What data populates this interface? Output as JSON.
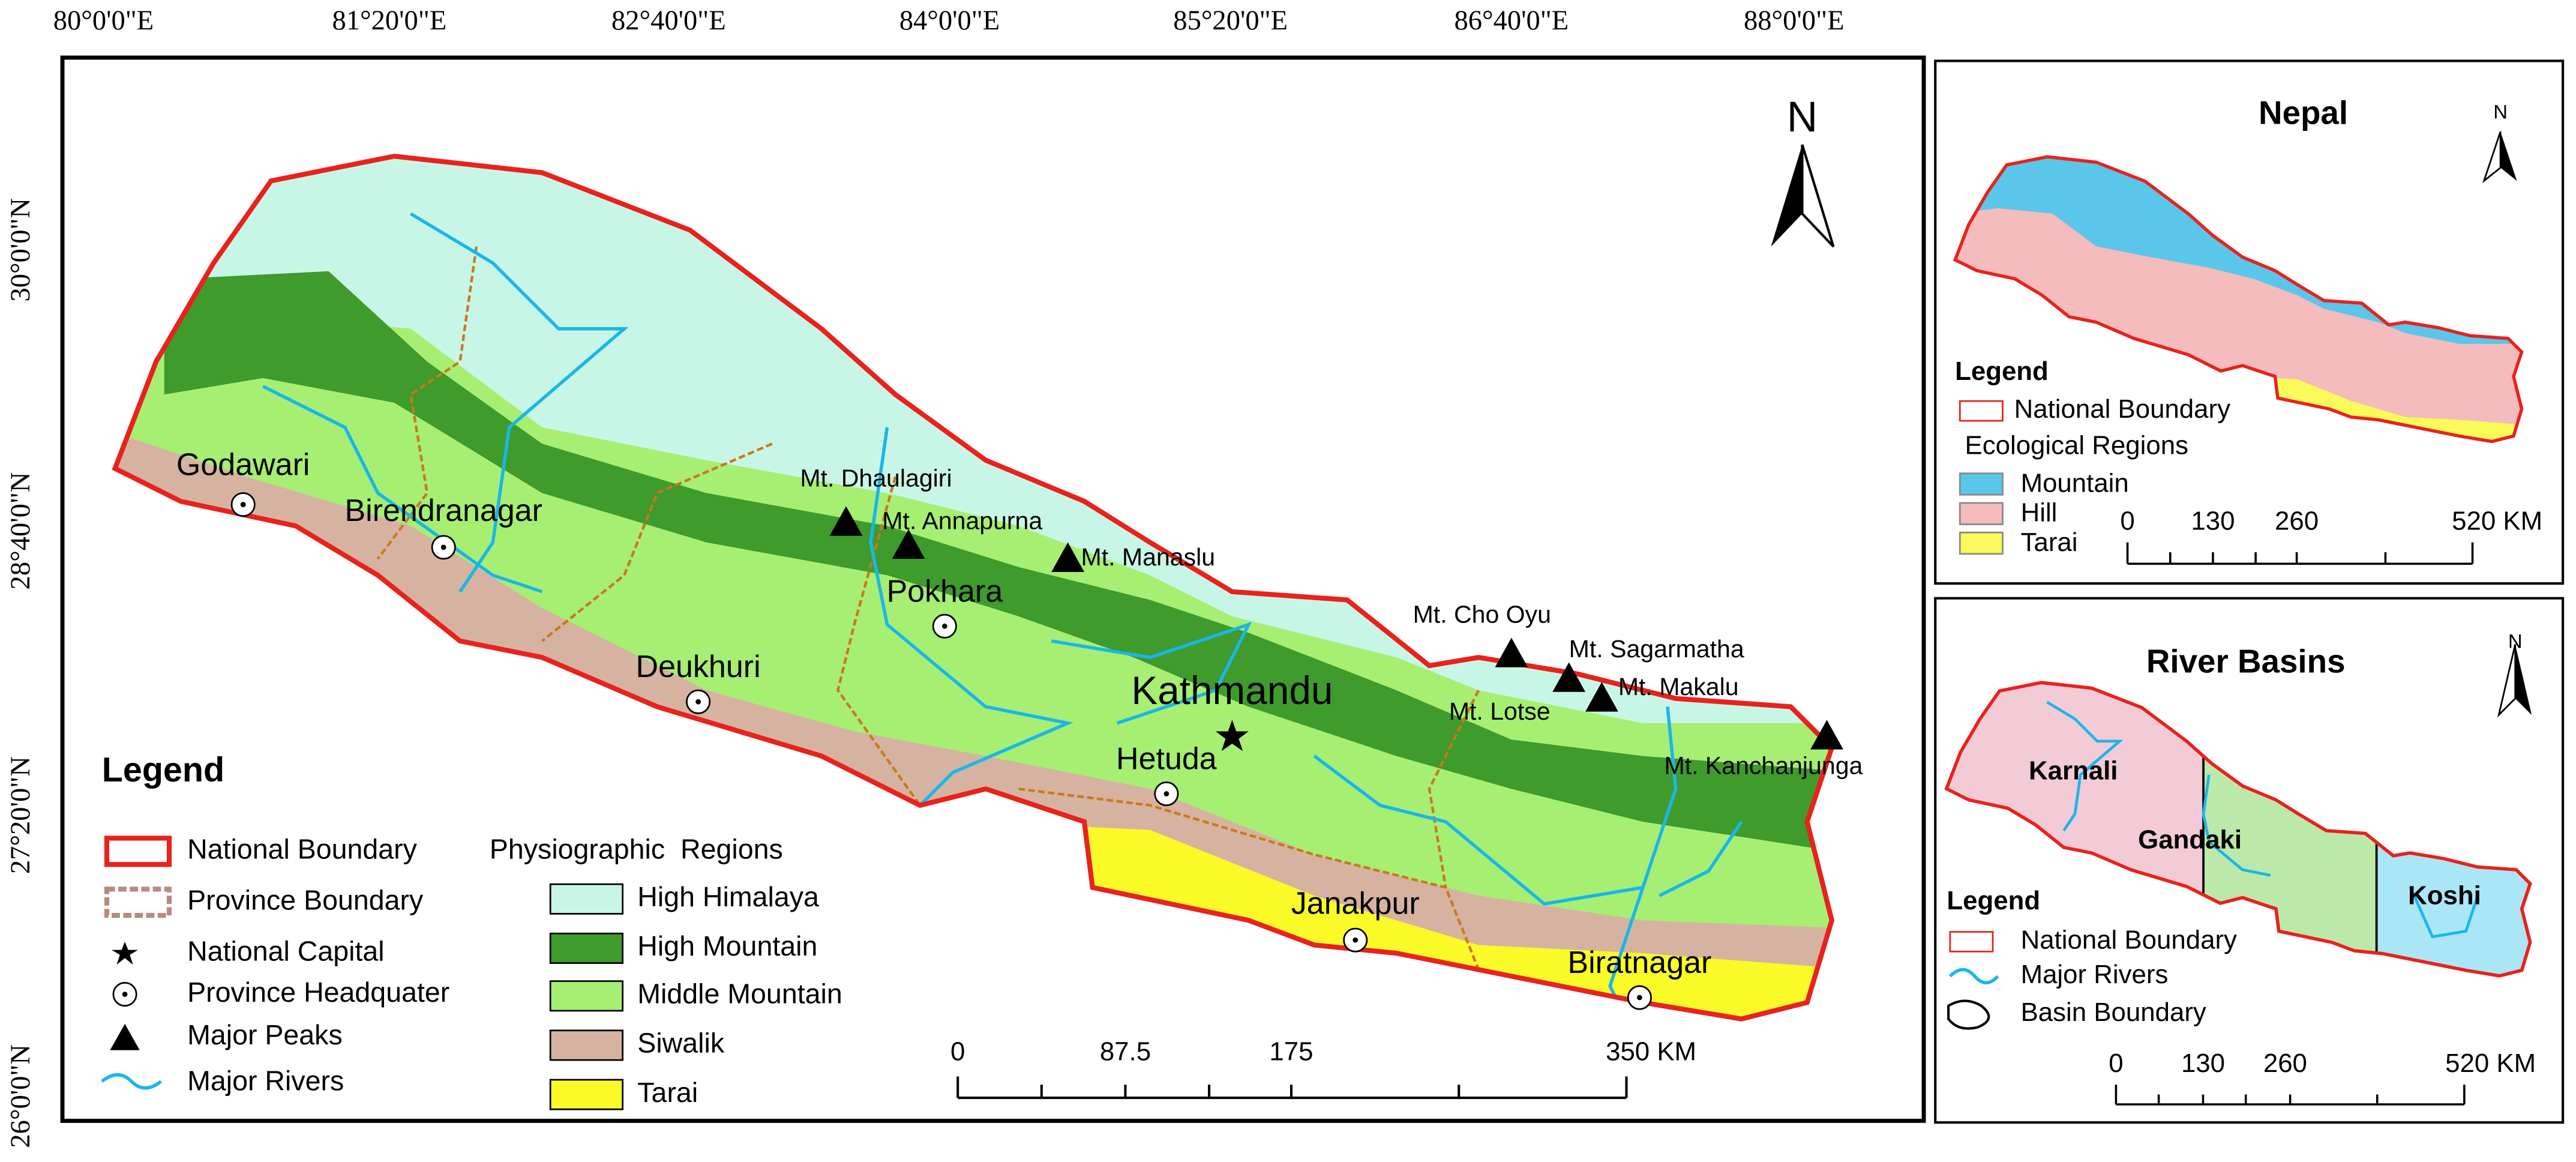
{
  "main_map": {
    "lon_labels": [
      "80°0'0\"E",
      "81°20'0\"E",
      "82°40'0\"E",
      "84°0'0\"E",
      "85°20'0\"E",
      "86°40'0\"E",
      "88°0'0\"E"
    ],
    "lat_labels": [
      "30°0'0\"N",
      "28°40'0\"N",
      "27°20'0\"N",
      "26°0'0\"N"
    ],
    "north": "N",
    "places": [
      "Godawari",
      "Birendranagar",
      "Deukhuri",
      "Pokhara",
      "Kathmandu",
      "Hetuda",
      "Janakpur",
      "Biratnagar"
    ],
    "peaks": [
      "Mt. Dhaulagiri",
      "Mt. Annapurna",
      "Mt. Manaslu",
      "Mt. Cho Oyu",
      "Mt. Sagarmatha",
      "Mt. Lotse",
      "Mt. Makalu",
      "Mt. Kanchanjunga"
    ],
    "legend": {
      "title": "Legend",
      "items": [
        "National Boundary",
        "Province Boundary",
        "National Capital",
        "Province Headquater",
        "Major Peaks",
        "Major Rivers"
      ],
      "regions_title": "Physiographic  Regions",
      "regions": [
        "High Himalaya",
        "High Mountain",
        "Middle Mountain",
        "Siwalik",
        "Tarai"
      ]
    },
    "scale": [
      "0",
      "87.5",
      "175",
      "350 KM"
    ]
  },
  "nepal_inset": {
    "title": "Nepal",
    "north": "N",
    "legend_title": "Legend",
    "boundary": "National Boundary",
    "regions_title": "Ecological Regions",
    "regions": [
      "Mountain",
      "Hill",
      "Tarai"
    ],
    "scale": [
      "0",
      "130",
      "260",
      "520 KM"
    ]
  },
  "basin_inset": {
    "title": "River Basins",
    "north": "N",
    "basins": [
      "Karnali",
      "Gandaki",
      "Koshi"
    ],
    "legend_title": "Legend",
    "items": [
      "National Boundary",
      "Major Rivers",
      "Basin Boundary"
    ],
    "scale": [
      "0",
      "130",
      "260",
      "520 KM"
    ]
  }
}
